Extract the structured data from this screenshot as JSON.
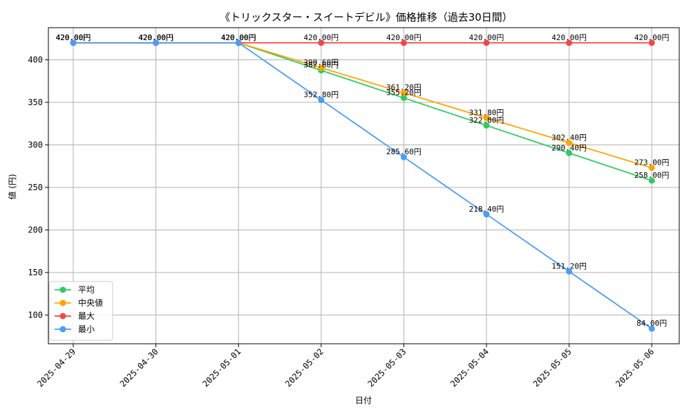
{
  "chart_data": {
    "type": "line",
    "title": "《トリックスター・スイートデビル》価格推移（過去30日間）",
    "xlabel": "日付",
    "ylabel": "値 (円)",
    "categories": [
      "2025-04-29",
      "2025-04-30",
      "2025-05-01",
      "2025-05-02",
      "2025-05-03",
      "2025-05-04",
      "2025-05-05",
      "2025-05-06"
    ],
    "ylim": [
      66.2,
      437.8
    ],
    "yticks": [
      100,
      150,
      200,
      250,
      300,
      350,
      400
    ],
    "grid": true,
    "legend_position": "lower-left",
    "series": [
      {
        "name": "平均",
        "color": "#2ecc5f",
        "values": [
          420.0,
          420.0,
          420.0,
          387.6,
          355.2,
          322.8,
          290.4,
          258.0
        ],
        "labels": [
          "420.00円",
          "420.00円",
          "420.00円",
          "387.60円",
          "355.20円",
          "322.80円",
          "290.40円",
          "258.00円"
        ]
      },
      {
        "name": "中央値",
        "color": "#ffa500",
        "values": [
          420.0,
          420.0,
          420.0,
          390.6,
          361.2,
          331.8,
          302.4,
          273.0
        ],
        "labels": [
          "420.00円",
          "420.00円",
          "420.00円",
          "390.60円",
          "361.20円",
          "331.80円",
          "302.40円",
          "273.00円"
        ]
      },
      {
        "name": "最大",
        "color": "#f04848",
        "values": [
          420.0,
          420.0,
          420.0,
          420.0,
          420.0,
          420.0,
          420.0,
          420.0
        ],
        "labels": [
          "420.00円",
          "420.00円",
          "420.00円",
          "420.00円",
          "420.00円",
          "420.00円",
          "420.00円",
          "420.00円"
        ]
      },
      {
        "name": "最小",
        "color": "#4a9cf7",
        "values": [
          420.0,
          420.0,
          420.0,
          352.8,
          285.6,
          218.4,
          151.2,
          84.0
        ],
        "labels": [
          "420.00円",
          "420.00円",
          "420.00円",
          "352.80円",
          "285.60円",
          "218.40円",
          "151.20円",
          "84.00円"
        ]
      }
    ]
  }
}
